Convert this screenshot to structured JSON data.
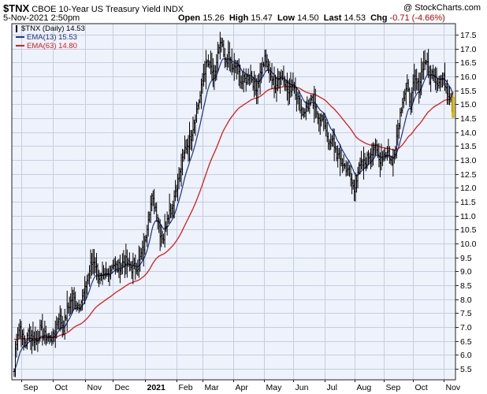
{
  "header": {
    "symbol": "$TNX",
    "name": "CBOE 10-Year US Treasury Yield",
    "exchange": "INDX",
    "copyright": "@ StockCharts.com",
    "date": "5-Nov-2021 2:50pm",
    "open_label": "Open",
    "open": "15.26",
    "high_label": "High",
    "high": "15.47",
    "low_label": "Low",
    "low": "14.50",
    "last_label": "Last",
    "last": "14.53",
    "chg_label": "Chg",
    "chg": "-0.71 (-4.66%)"
  },
  "legend": [
    {
      "text": "$TNX (Daily) 14.53",
      "color": "#000000",
      "marker": "candle"
    },
    {
      "text": "EMA(13) 15.53",
      "color": "#1f2f8f",
      "marker": "line"
    },
    {
      "text": "EMA(63) 14.80",
      "color": "#d81e1e",
      "marker": "line"
    }
  ],
  "chart_data": {
    "type": "line",
    "title": "$TNX CBOE 10-Year US Treasury Yield INDX",
    "ylim": [
      5.1,
      17.9
    ],
    "y_ticks": [
      5.5,
      6.0,
      6.5,
      7.0,
      7.5,
      8.0,
      8.5,
      9.0,
      9.5,
      10.0,
      10.5,
      11.0,
      11.5,
      12.0,
      12.5,
      13.0,
      13.5,
      14.0,
      14.5,
      15.0,
      15.5,
      16.0,
      16.5,
      17.0,
      17.5
    ],
    "x_month_labels": [
      {
        "label": "Sep",
        "day": 6,
        "bold": false
      },
      {
        "label": "Oct",
        "day": 33,
        "bold": false
      },
      {
        "label": "Nov",
        "day": 60,
        "bold": false
      },
      {
        "label": "Dec",
        "day": 84,
        "bold": false
      },
      {
        "label": "2021",
        "day": 111,
        "bold": true
      },
      {
        "label": "Feb",
        "day": 138,
        "bold": false
      },
      {
        "label": "Mar",
        "day": 160,
        "bold": false
      },
      {
        "label": "Apr",
        "day": 186,
        "bold": false
      },
      {
        "label": "May",
        "day": 212,
        "bold": false
      },
      {
        "label": "Jun",
        "day": 237,
        "bold": false
      },
      {
        "label": "Jul",
        "day": 264,
        "bold": false
      },
      {
        "label": "Aug",
        "day": 289,
        "bold": false
      },
      {
        "label": "Sep",
        "day": 314,
        "bold": false
      },
      {
        "label": "Oct",
        "day": 339,
        "bold": false
      },
      {
        "label": "Nov",
        "day": 365,
        "bold": false
      }
    ],
    "day_count": 373,
    "price_anchors": [
      [
        0,
        5.4
      ],
      [
        1,
        6.2
      ],
      [
        3,
        6.8
      ],
      [
        5,
        7.0
      ],
      [
        7,
        6.6
      ],
      [
        10,
        6.4
      ],
      [
        12,
        6.8
      ],
      [
        16,
        6.6
      ],
      [
        19,
        6.5
      ],
      [
        22,
        6.9
      ],
      [
        25,
        6.7
      ],
      [
        30,
        6.6
      ],
      [
        33,
        6.6
      ],
      [
        38,
        7.4
      ],
      [
        42,
        7.0
      ],
      [
        45,
        7.6
      ],
      [
        50,
        8.1
      ],
      [
        53,
        7.8
      ],
      [
        56,
        7.8
      ],
      [
        60,
        8.3
      ],
      [
        62,
        8.7
      ],
      [
        65,
        9.2
      ],
      [
        68,
        9.4
      ],
      [
        72,
        8.8
      ],
      [
        75,
        8.7
      ],
      [
        80,
        8.9
      ],
      [
        84,
        9.3
      ],
      [
        88,
        9.1
      ],
      [
        94,
        9.4
      ],
      [
        100,
        9.1
      ],
      [
        105,
        9.2
      ],
      [
        108,
        9.6
      ],
      [
        111,
        10.0
      ],
      [
        114,
        11.0
      ],
      [
        117,
        11.6
      ],
      [
        120,
        11.3
      ],
      [
        124,
        10.4
      ],
      [
        127,
        10.2
      ],
      [
        130,
        11.0
      ],
      [
        134,
        11.3
      ],
      [
        138,
        12.1
      ],
      [
        141,
        12.5
      ],
      [
        145,
        13.4
      ],
      [
        149,
        13.7
      ],
      [
        152,
        14.2
      ],
      [
        155,
        14.8
      ],
      [
        158,
        15.3
      ],
      [
        161,
        16.1
      ],
      [
        164,
        16.5
      ],
      [
        167,
        16.3
      ],
      [
        170,
        15.9
      ],
      [
        173,
        16.8
      ],
      [
        176,
        17.2
      ],
      [
        179,
        16.5
      ],
      [
        182,
        16.7
      ],
      [
        186,
        16.2
      ],
      [
        189,
        16.4
      ],
      [
        193,
        15.8
      ],
      [
        197,
        15.9
      ],
      [
        201,
        16.1
      ],
      [
        205,
        15.5
      ],
      [
        209,
        16.1
      ],
      [
        213,
        16.6
      ],
      [
        217,
        16.2
      ],
      [
        221,
        15.6
      ],
      [
        225,
        16.0
      ],
      [
        229,
        16.0
      ],
      [
        233,
        15.4
      ],
      [
        237,
        15.8
      ],
      [
        241,
        15.2
      ],
      [
        245,
        14.7
      ],
      [
        249,
        14.9
      ],
      [
        253,
        15.1
      ],
      [
        257,
        14.7
      ],
      [
        261,
        14.5
      ],
      [
        264,
        14.3
      ],
      [
        268,
        13.5
      ],
      [
        271,
        13.7
      ],
      [
        274,
        13.2
      ],
      [
        277,
        13.0
      ],
      [
        280,
        12.8
      ],
      [
        283,
        12.7
      ],
      [
        286,
        12.3
      ],
      [
        289,
        11.9
      ],
      [
        292,
        12.6
      ],
      [
        295,
        12.8
      ],
      [
        298,
        12.9
      ],
      [
        302,
        13.2
      ],
      [
        306,
        13.5
      ],
      [
        310,
        13.0
      ],
      [
        314,
        13.2
      ],
      [
        318,
        13.3
      ],
      [
        321,
        12.8
      ],
      [
        324,
        13.6
      ],
      [
        327,
        14.4
      ],
      [
        330,
        15.2
      ],
      [
        334,
        15.6
      ],
      [
        337,
        15.0
      ],
      [
        340,
        15.9
      ],
      [
        344,
        15.6
      ],
      [
        347,
        16.4
      ],
      [
        350,
        16.6
      ],
      [
        353,
        15.9
      ],
      [
        356,
        16.2
      ],
      [
        359,
        15.8
      ],
      [
        362,
        15.9
      ],
      [
        365,
        15.9
      ],
      [
        369,
        15.4
      ],
      [
        371,
        15.3
      ],
      [
        373,
        14.53
      ]
    ],
    "series": [
      {
        "name": "$TNX (Daily)",
        "last": 14.53,
        "color": "#000000"
      },
      {
        "name": "EMA(13)",
        "last": 15.53,
        "period": 13,
        "color": "#1f2f8f"
      },
      {
        "name": "EMA(63)",
        "last": 14.8,
        "period": 63,
        "color": "#d81e1e"
      }
    ],
    "last_bar": {
      "open": 15.26,
      "high": 15.47,
      "low": 14.5,
      "close": 14.53,
      "color": "#ffdc00"
    },
    "grid": true
  }
}
